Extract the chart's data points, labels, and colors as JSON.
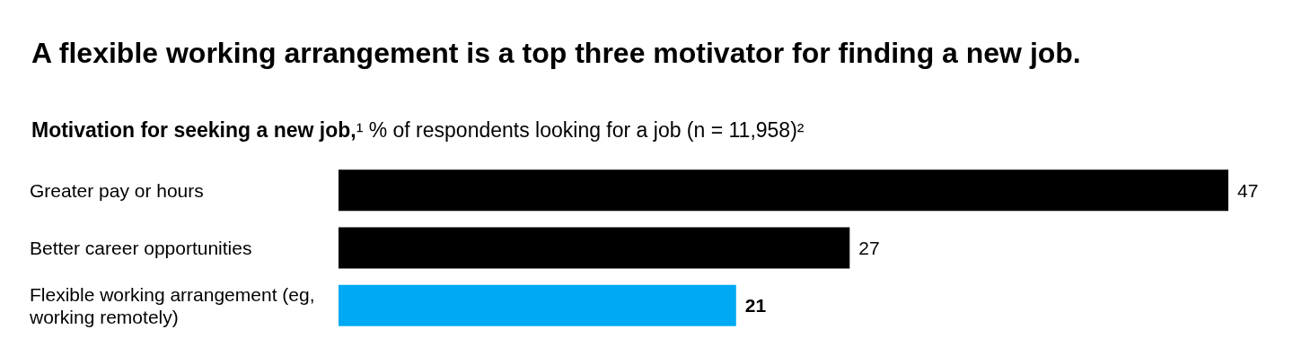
{
  "chart_data": {
    "type": "bar",
    "orientation": "horizontal",
    "title": "A flexible working arrangement is a top three motivator for finding a new job.",
    "subtitle": "Motivation for seeking a new job,¹ % of respondents looking for a job (n = 11,958)²",
    "categories": [
      "Greater pay or hours",
      "Better career opportunities",
      "Flexible working arrangement (eg, working remotely)"
    ],
    "values": [
      47,
      27,
      21
    ],
    "colors": [
      "#000000",
      "#000000",
      "#00a9f4"
    ],
    "data_labels": true,
    "tick_labels": "y"
  }
}
